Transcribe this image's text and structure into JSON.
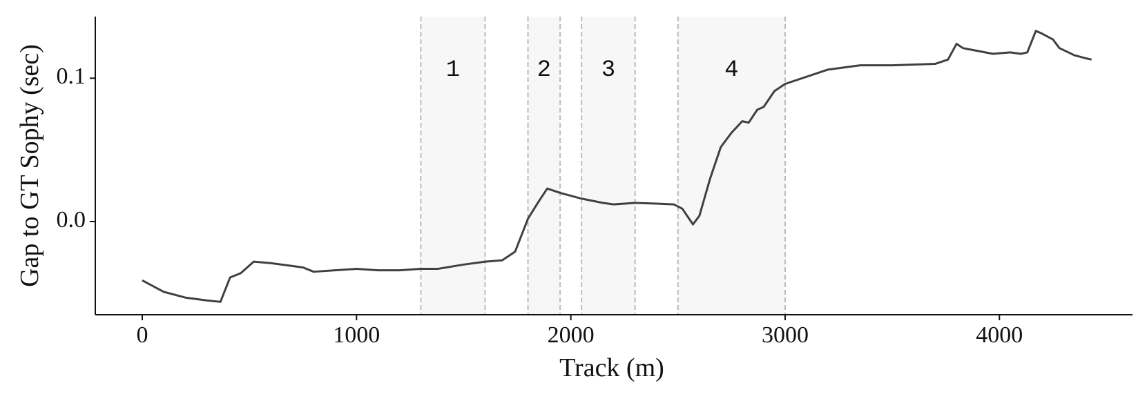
{
  "chart_data": {
    "type": "line",
    "xlabel": "Track (m)",
    "ylabel": "Gap to GT Sophy (sec)",
    "xlim": [
      -219,
      4621
    ],
    "ylim": [
      -0.065,
      0.143
    ],
    "xticks": [
      0,
      1000,
      2000,
      3000,
      4000
    ],
    "yticks": [
      {
        "value": 0,
        "label": "0.0"
      },
      0.1
    ],
    "regions": [
      {
        "x0": 1300,
        "x1": 1600,
        "label": "1"
      },
      {
        "x0": 1800,
        "x1": 1950,
        "label": "2"
      },
      {
        "x0": 2050,
        "x1": 2300,
        "label": "3"
      },
      {
        "x0": 2500,
        "x1": 3000,
        "label": "4"
      }
    ],
    "region_label_y": 0.106,
    "region_color": "#f7f7f7",
    "region_edge_color": "#bbbbbb",
    "x": [
      0,
      100,
      200,
      300,
      365,
      410,
      460,
      520,
      600,
      700,
      750,
      800,
      900,
      1000,
      1100,
      1200,
      1300,
      1380,
      1500,
      1600,
      1680,
      1740,
      1800,
      1850,
      1890,
      1950,
      2050,
      2150,
      2200,
      2300,
      2400,
      2480,
      2520,
      2570,
      2600,
      2650,
      2700,
      2750,
      2800,
      2830,
      2870,
      2900,
      2950,
      3000,
      3100,
      3200,
      3350,
      3500,
      3700,
      3760,
      3800,
      3830,
      3900,
      3970,
      4050,
      4100,
      4130,
      4170,
      4200,
      4250,
      4280,
      4350,
      4400,
      4430
    ],
    "series": [
      {
        "color": "#404040",
        "values": [
          -0.041,
          -0.049,
          -0.053,
          -0.055,
          -0.056,
          -0.039,
          -0.036,
          -0.028,
          -0.029,
          -0.031,
          -0.032,
          -0.035,
          -0.034,
          -0.033,
          -0.034,
          -0.034,
          -0.033,
          -0.033,
          -0.03,
          -0.028,
          -0.027,
          -0.021,
          0.002,
          0.014,
          0.023,
          0.02,
          0.016,
          0.013,
          0.012,
          0.013,
          0.0125,
          0.012,
          0.009,
          -0.002,
          0.004,
          0.03,
          0.052,
          0.062,
          0.07,
          0.069,
          0.078,
          0.08,
          0.091,
          0.096,
          0.101,
          0.106,
          0.109,
          0.109,
          0.11,
          0.113,
          0.124,
          0.121,
          0.119,
          0.117,
          0.118,
          0.117,
          0.118,
          0.133,
          0.131,
          0.127,
          0.121,
          0.116,
          0.114,
          0.113
        ]
      }
    ]
  }
}
